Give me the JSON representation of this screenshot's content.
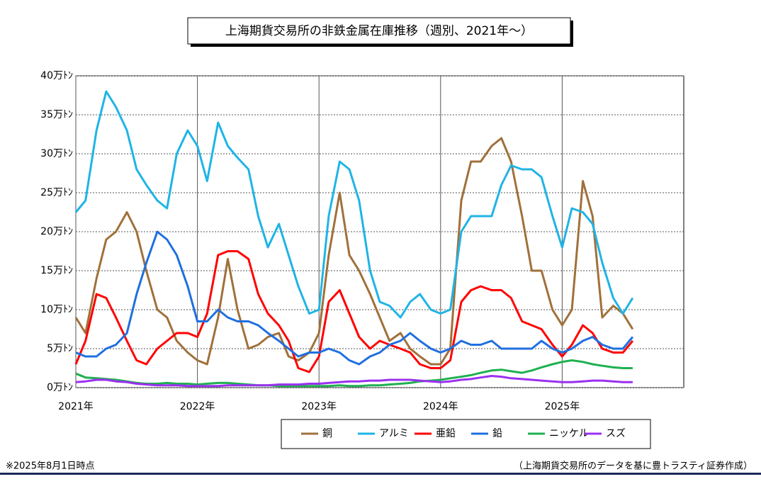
{
  "chart_data": {
    "type": "line",
    "title": "上海期貨交易所の非鉄金属在庫推移（週別、2021年～）",
    "footnote": "※2025年8月1日時点",
    "source": "（上海期貨交易所のデータを基に豊トラスティ証券作成）",
    "x": [
      2021.0,
      2021.08,
      2021.17,
      2021.25,
      2021.33,
      2021.42,
      2021.5,
      2021.58,
      2021.67,
      2021.75,
      2021.83,
      2021.92,
      2022.0,
      2022.08,
      2022.17,
      2022.25,
      2022.33,
      2022.42,
      2022.5,
      2022.58,
      2022.67,
      2022.75,
      2022.83,
      2022.92,
      2023.0,
      2023.08,
      2023.17,
      2023.25,
      2023.33,
      2023.42,
      2023.5,
      2023.58,
      2023.67,
      2023.75,
      2023.83,
      2023.92,
      2024.0,
      2024.08,
      2024.17,
      2024.25,
      2024.33,
      2024.42,
      2024.5,
      2024.58,
      2024.67,
      2024.75,
      2024.83,
      2024.92,
      2025.0,
      2025.08,
      2025.17,
      2025.25,
      2025.33,
      2025.42,
      2025.5,
      2025.58
    ],
    "xlim": [
      2021,
      2026
    ],
    "xticks": [
      {
        "value": 2021,
        "label": "2021年"
      },
      {
        "value": 2022,
        "label": "2022年"
      },
      {
        "value": 2023,
        "label": "2023年"
      },
      {
        "value": 2024,
        "label": "2024年"
      },
      {
        "value": 2025,
        "label": "2025年"
      }
    ],
    "ylim": [
      0,
      40
    ],
    "yticks": [
      {
        "value": 0,
        "label": "0万ﾄﾝ"
      },
      {
        "value": 5,
        "label": "5万ﾄﾝ"
      },
      {
        "value": 10,
        "label": "10万ﾄﾝ"
      },
      {
        "value": 15,
        "label": "15万ﾄﾝ"
      },
      {
        "value": 20,
        "label": "20万ﾄﾝ"
      },
      {
        "value": 25,
        "label": "25万ﾄﾝ"
      },
      {
        "value": 30,
        "label": "30万ﾄﾝ"
      },
      {
        "value": 35,
        "label": "35万ﾄﾝ"
      },
      {
        "value": 40,
        "label": "40万ﾄﾝ"
      }
    ],
    "grid": true,
    "series": [
      {
        "name": "銅",
        "color": "#a0703a",
        "values": [
          9,
          7,
          14,
          19,
          20,
          22.5,
          20,
          15,
          10,
          9,
          6,
          4.5,
          3.5,
          3,
          9,
          16.5,
          10,
          5,
          5.5,
          6.5,
          7,
          4,
          3.5,
          4.5,
          7,
          17,
          25,
          17,
          15,
          12,
          9,
          6,
          7,
          5,
          4,
          3,
          3,
          5,
          24,
          29,
          29,
          31,
          32,
          29,
          22,
          15,
          15,
          10,
          8,
          10,
          26.5,
          22,
          9,
          10.5,
          9.5,
          7.5
        ]
      },
      {
        "name": "アルミ",
        "color": "#1fb4e6",
        "values": [
          22.5,
          24,
          33,
          38,
          36,
          33,
          28,
          26,
          24,
          23,
          30,
          33,
          31,
          26.5,
          34,
          31,
          29.5,
          28,
          22,
          18,
          21,
          17,
          13,
          9.5,
          10,
          22,
          29,
          28,
          24,
          15,
          11,
          10.5,
          9,
          11,
          12,
          10,
          9.5,
          10,
          20,
          22,
          22,
          22,
          26,
          28.5,
          28,
          28,
          27,
          22,
          18,
          23,
          22.5,
          21,
          16,
          11.5,
          9.5,
          11.5
        ]
      },
      {
        "name": "亜鉛",
        "color": "#ff0000",
        "values": [
          3,
          6,
          12,
          11.5,
          9,
          6,
          3.5,
          3,
          5,
          6,
          7,
          7,
          6.5,
          9.5,
          17,
          17.5,
          17.5,
          16.5,
          12,
          9.5,
          8,
          6,
          2.5,
          2,
          4,
          11,
          12.5,
          9.5,
          6.5,
          5,
          6,
          5.5,
          5,
          4.5,
          3,
          2.5,
          2.5,
          3.5,
          11,
          12.5,
          13,
          12.5,
          12.5,
          11.5,
          8.5,
          8,
          7.5,
          5.5,
          4,
          5.5,
          8,
          7,
          5,
          4.5,
          4.5,
          6
        ]
      },
      {
        "name": "鉛",
        "color": "#1f6fe0",
        "values": [
          4.5,
          4,
          4,
          5,
          5.5,
          7,
          12,
          16,
          20,
          19,
          17,
          13,
          8.5,
          8.5,
          10,
          9,
          8.5,
          8.5,
          8,
          7,
          6,
          5,
          4,
          4.5,
          4.5,
          5,
          4.5,
          3.5,
          3,
          4,
          4.5,
          5.5,
          6,
          7,
          6,
          5,
          4.5,
          5,
          6,
          5.5,
          5.5,
          6,
          5,
          5,
          5,
          5,
          6,
          5,
          4.5,
          5,
          6,
          6.5,
          5.5,
          5,
          5,
          6.5
        ]
      },
      {
        "name": "ニッケル",
        "color": "#1fb050",
        "values": [
          1.8,
          1.3,
          1.2,
          1.1,
          1.0,
          0.8,
          0.6,
          0.5,
          0.5,
          0.6,
          0.5,
          0.5,
          0.4,
          0.5,
          0.6,
          0.6,
          0.5,
          0.4,
          0.3,
          0.3,
          0.2,
          0.2,
          0.2,
          0.2,
          0.2,
          0.2,
          0.3,
          0.2,
          0.2,
          0.3,
          0.3,
          0.4,
          0.5,
          0.6,
          0.8,
          0.9,
          1.0,
          1.2,
          1.4,
          1.6,
          1.9,
          2.2,
          2.3,
          2.1,
          1.9,
          2.2,
          2.6,
          3.0,
          3.3,
          3.5,
          3.3,
          3.0,
          2.8,
          2.6,
          2.5,
          2.5
        ]
      },
      {
        "name": "スズ",
        "color": "#9b30f0",
        "values": [
          0.7,
          0.8,
          1.0,
          1.0,
          0.8,
          0.7,
          0.5,
          0.4,
          0.3,
          0.3,
          0.3,
          0.2,
          0.2,
          0.2,
          0.2,
          0.3,
          0.3,
          0.3,
          0.3,
          0.3,
          0.4,
          0.4,
          0.4,
          0.5,
          0.5,
          0.6,
          0.7,
          0.8,
          0.8,
          0.9,
          0.9,
          1.0,
          1.0,
          1.0,
          0.9,
          0.8,
          0.7,
          0.8,
          1.0,
          1.1,
          1.3,
          1.5,
          1.4,
          1.2,
          1.1,
          1.0,
          0.9,
          0.8,
          0.7,
          0.7,
          0.8,
          0.9,
          0.9,
          0.8,
          0.7,
          0.7
        ]
      }
    ]
  }
}
